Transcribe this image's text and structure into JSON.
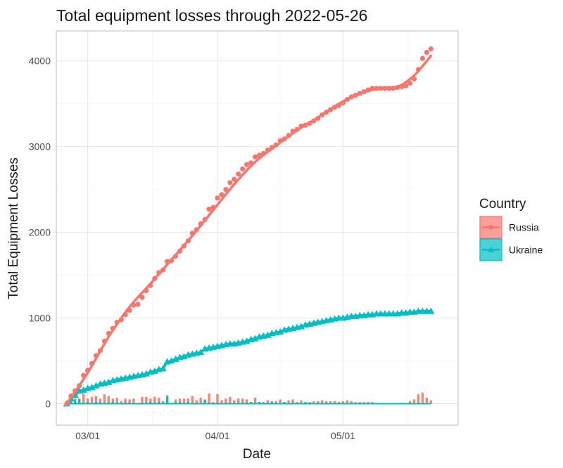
{
  "chart_data": {
    "type": "line",
    "title": "Total equipment losses through 2022-05-26",
    "xlabel": "Date",
    "ylabel": "Total Equipment Losses",
    "x_start": "2022-02-24",
    "x_end": "2022-05-26",
    "xlim_days": [
      -2.5,
      93.5
    ],
    "ylim": [
      -250,
      4350
    ],
    "x_ticks": [
      {
        "label": "03/01",
        "day": 5
      },
      {
        "label": "04/01",
        "day": 36
      },
      {
        "label": "05/01",
        "day": 66
      }
    ],
    "y_ticks": [
      0,
      1000,
      2000,
      3000,
      4000
    ],
    "grid": true,
    "legend": {
      "title": "Country",
      "position": "right"
    },
    "series": [
      {
        "name": "Russia",
        "color": "#F8766D",
        "marker": "circle",
        "cumulative": [
          {
            "day": 0,
            "value": 0
          },
          {
            "day": 1,
            "value": 90
          },
          {
            "day": 2,
            "value": 150
          },
          {
            "day": 3,
            "value": 210
          },
          {
            "day": 4,
            "value": 330
          },
          {
            "day": 5,
            "value": 390
          },
          {
            "day": 6,
            "value": 470
          },
          {
            "day": 7,
            "value": 560
          },
          {
            "day": 8,
            "value": 620
          },
          {
            "day": 9,
            "value": 730
          },
          {
            "day": 10,
            "value": 820
          },
          {
            "day": 11,
            "value": 880
          },
          {
            "day": 12,
            "value": 950
          },
          {
            "day": 13,
            "value": 980
          },
          {
            "day": 14,
            "value": 1040
          },
          {
            "day": 15,
            "value": 1090
          },
          {
            "day": 16,
            "value": 1150
          },
          {
            "day": 17,
            "value": 1160
          },
          {
            "day": 18,
            "value": 1240
          },
          {
            "day": 19,
            "value": 1320
          },
          {
            "day": 20,
            "value": 1380
          },
          {
            "day": 21,
            "value": 1460
          },
          {
            "day": 22,
            "value": 1530
          },
          {
            "day": 23,
            "value": 1560
          },
          {
            "day": 24,
            "value": 1660
          },
          {
            "day": 25,
            "value": 1670
          },
          {
            "day": 26,
            "value": 1720
          },
          {
            "day": 27,
            "value": 1780
          },
          {
            "day": 28,
            "value": 1840
          },
          {
            "day": 29,
            "value": 1900
          },
          {
            "day": 30,
            "value": 1990
          },
          {
            "day": 31,
            "value": 2030
          },
          {
            "day": 32,
            "value": 2100
          },
          {
            "day": 33,
            "value": 2150
          },
          {
            "day": 34,
            "value": 2270
          },
          {
            "day": 35,
            "value": 2290
          },
          {
            "day": 36,
            "value": 2400
          },
          {
            "day": 37,
            "value": 2440
          },
          {
            "day": 38,
            "value": 2500
          },
          {
            "day": 39,
            "value": 2580
          },
          {
            "day": 40,
            "value": 2620
          },
          {
            "day": 41,
            "value": 2680
          },
          {
            "day": 42,
            "value": 2740
          },
          {
            "day": 43,
            "value": 2790
          },
          {
            "day": 44,
            "value": 2810
          },
          {
            "day": 45,
            "value": 2880
          },
          {
            "day": 46,
            "value": 2900
          },
          {
            "day": 47,
            "value": 2920
          },
          {
            "day": 48,
            "value": 2960
          },
          {
            "day": 49,
            "value": 2990
          },
          {
            "day": 50,
            "value": 3020
          },
          {
            "day": 51,
            "value": 3070
          },
          {
            "day": 52,
            "value": 3090
          },
          {
            "day": 53,
            "value": 3130
          },
          {
            "day": 54,
            "value": 3180
          },
          {
            "day": 55,
            "value": 3200
          },
          {
            "day": 56,
            "value": 3240
          },
          {
            "day": 57,
            "value": 3250
          },
          {
            "day": 58,
            "value": 3270
          },
          {
            "day": 59,
            "value": 3300
          },
          {
            "day": 60,
            "value": 3330
          },
          {
            "day": 61,
            "value": 3370
          },
          {
            "day": 62,
            "value": 3400
          },
          {
            "day": 63,
            "value": 3430
          },
          {
            "day": 64,
            "value": 3460
          },
          {
            "day": 65,
            "value": 3480
          },
          {
            "day": 66,
            "value": 3510
          },
          {
            "day": 67,
            "value": 3550
          },
          {
            "day": 68,
            "value": 3580
          },
          {
            "day": 69,
            "value": 3600
          },
          {
            "day": 70,
            "value": 3620
          },
          {
            "day": 71,
            "value": 3640
          },
          {
            "day": 72,
            "value": 3660
          },
          {
            "day": 73,
            "value": 3680
          },
          {
            "day": 74,
            "value": 3680
          },
          {
            "day": 75,
            "value": 3680
          },
          {
            "day": 76,
            "value": 3680
          },
          {
            "day": 77,
            "value": 3680
          },
          {
            "day": 78,
            "value": 3680
          },
          {
            "day": 79,
            "value": 3690
          },
          {
            "day": 80,
            "value": 3700
          },
          {
            "day": 81,
            "value": 3710
          },
          {
            "day": 82,
            "value": 3740
          },
          {
            "day": 83,
            "value": 3790
          },
          {
            "day": 84,
            "value": 3900
          },
          {
            "day": 85,
            "value": 4030
          },
          {
            "day": 86,
            "value": 4100
          },
          {
            "day": 87,
            "value": 4140
          }
        ],
        "smooth": [
          {
            "day": 0,
            "value": 0
          },
          {
            "day": 5,
            "value": 360
          },
          {
            "day": 10,
            "value": 780
          },
          {
            "day": 15,
            "value": 1130
          },
          {
            "day": 20,
            "value": 1400
          },
          {
            "day": 25,
            "value": 1680
          },
          {
            "day": 30,
            "value": 1960
          },
          {
            "day": 35,
            "value": 2260
          },
          {
            "day": 40,
            "value": 2560
          },
          {
            "day": 45,
            "value": 2820
          },
          {
            "day": 50,
            "value": 3010
          },
          {
            "day": 55,
            "value": 3190
          },
          {
            "day": 60,
            "value": 3340
          },
          {
            "day": 65,
            "value": 3500
          },
          {
            "day": 70,
            "value": 3620
          },
          {
            "day": 75,
            "value": 3680
          },
          {
            "day": 78,
            "value": 3690
          },
          {
            "day": 80,
            "value": 3720
          },
          {
            "day": 83,
            "value": 3830
          },
          {
            "day": 85,
            "value": 3940
          },
          {
            "day": 87,
            "value": 4060
          }
        ],
        "daily": [
          0,
          90,
          60,
          60,
          120,
          60,
          80,
          90,
          60,
          110,
          90,
          60,
          70,
          30,
          60,
          50,
          60,
          10,
          80,
          80,
          60,
          80,
          70,
          30,
          100,
          10,
          50,
          60,
          60,
          60,
          90,
          40,
          70,
          50,
          120,
          20,
          110,
          40,
          60,
          80,
          40,
          60,
          60,
          50,
          20,
          70,
          20,
          20,
          40,
          30,
          30,
          50,
          20,
          40,
          50,
          20,
          40,
          10,
          20,
          30,
          30,
          40,
          30,
          30,
          30,
          20,
          30,
          40,
          30,
          20,
          20,
          20,
          20,
          20,
          0,
          0,
          0,
          0,
          0,
          10,
          10,
          10,
          30,
          50,
          110,
          130,
          70,
          40
        ]
      },
      {
        "name": "Ukraine",
        "color": "#00BFC4",
        "marker": "triangle",
        "cumulative": [
          {
            "day": 0,
            "value": 0
          },
          {
            "day": 1,
            "value": 60
          },
          {
            "day": 2,
            "value": 100
          },
          {
            "day": 3,
            "value": 150
          },
          {
            "day": 4,
            "value": 160
          },
          {
            "day": 5,
            "value": 180
          },
          {
            "day": 6,
            "value": 190
          },
          {
            "day": 7,
            "value": 210
          },
          {
            "day": 8,
            "value": 230
          },
          {
            "day": 9,
            "value": 240
          },
          {
            "day": 10,
            "value": 250
          },
          {
            "day": 11,
            "value": 270
          },
          {
            "day": 12,
            "value": 280
          },
          {
            "day": 13,
            "value": 290
          },
          {
            "day": 14,
            "value": 300
          },
          {
            "day": 15,
            "value": 310
          },
          {
            "day": 16,
            "value": 320
          },
          {
            "day": 17,
            "value": 330
          },
          {
            "day": 18,
            "value": 340
          },
          {
            "day": 19,
            "value": 350
          },
          {
            "day": 20,
            "value": 370
          },
          {
            "day": 21,
            "value": 380
          },
          {
            "day": 22,
            "value": 400
          },
          {
            "day": 23,
            "value": 410
          },
          {
            "day": 24,
            "value": 490
          },
          {
            "day": 25,
            "value": 500
          },
          {
            "day": 26,
            "value": 520
          },
          {
            "day": 27,
            "value": 540
          },
          {
            "day": 28,
            "value": 550
          },
          {
            "day": 29,
            "value": 570
          },
          {
            "day": 30,
            "value": 580
          },
          {
            "day": 31,
            "value": 590
          },
          {
            "day": 32,
            "value": 600
          },
          {
            "day": 33,
            "value": 640
          },
          {
            "day": 34,
            "value": 650
          },
          {
            "day": 35,
            "value": 660
          },
          {
            "day": 36,
            "value": 670
          },
          {
            "day": 37,
            "value": 680
          },
          {
            "day": 38,
            "value": 690
          },
          {
            "day": 39,
            "value": 700
          },
          {
            "day": 40,
            "value": 700
          },
          {
            "day": 41,
            "value": 710
          },
          {
            "day": 42,
            "value": 720
          },
          {
            "day": 43,
            "value": 730
          },
          {
            "day": 44,
            "value": 750
          },
          {
            "day": 45,
            "value": 760
          },
          {
            "day": 46,
            "value": 780
          },
          {
            "day": 47,
            "value": 790
          },
          {
            "day": 48,
            "value": 800
          },
          {
            "day": 49,
            "value": 820
          },
          {
            "day": 50,
            "value": 830
          },
          {
            "day": 51,
            "value": 840
          },
          {
            "day": 52,
            "value": 860
          },
          {
            "day": 53,
            "value": 870
          },
          {
            "day": 54,
            "value": 880
          },
          {
            "day": 55,
            "value": 890
          },
          {
            "day": 56,
            "value": 900
          },
          {
            "day": 57,
            "value": 920
          },
          {
            "day": 58,
            "value": 930
          },
          {
            "day": 59,
            "value": 940
          },
          {
            "day": 60,
            "value": 950
          },
          {
            "day": 61,
            "value": 960
          },
          {
            "day": 62,
            "value": 970
          },
          {
            "day": 63,
            "value": 980
          },
          {
            "day": 64,
            "value": 990
          },
          {
            "day": 65,
            "value": 1000
          },
          {
            "day": 66,
            "value": 1000
          },
          {
            "day": 67,
            "value": 1010
          },
          {
            "day": 68,
            "value": 1020
          },
          {
            "day": 69,
            "value": 1020
          },
          {
            "day": 70,
            "value": 1030
          },
          {
            "day": 71,
            "value": 1030
          },
          {
            "day": 72,
            "value": 1040
          },
          {
            "day": 73,
            "value": 1040
          },
          {
            "day": 74,
            "value": 1050
          },
          {
            "day": 75,
            "value": 1050
          },
          {
            "day": 76,
            "value": 1050
          },
          {
            "day": 77,
            "value": 1050
          },
          {
            "day": 78,
            "value": 1050
          },
          {
            "day": 79,
            "value": 1050
          },
          {
            "day": 80,
            "value": 1060
          },
          {
            "day": 81,
            "value": 1060
          },
          {
            "day": 82,
            "value": 1070
          },
          {
            "day": 83,
            "value": 1070
          },
          {
            "day": 84,
            "value": 1080
          },
          {
            "day": 85,
            "value": 1080
          },
          {
            "day": 86,
            "value": 1080
          },
          {
            "day": 87,
            "value": 1080
          }
        ],
        "daily": [
          0,
          60,
          40,
          50,
          10,
          20,
          10,
          20,
          20,
          10,
          10,
          20,
          10,
          10,
          10,
          10,
          10,
          10,
          10,
          10,
          20,
          10,
          20,
          10,
          80,
          10,
          20,
          20,
          10,
          20,
          10,
          10,
          10,
          40,
          10,
          10,
          10,
          10,
          10,
          10,
          0,
          10,
          10,
          10,
          20,
          10,
          20,
          10,
          10,
          20,
          10,
          10,
          20,
          10,
          10,
          10,
          10,
          20,
          10,
          10,
          10,
          10,
          10,
          10,
          10,
          10,
          0,
          10,
          10,
          0,
          10,
          0,
          10,
          0,
          10,
          0,
          0,
          0,
          0,
          0,
          10,
          0,
          10,
          0,
          10,
          0,
          0,
          0
        ]
      }
    ]
  }
}
